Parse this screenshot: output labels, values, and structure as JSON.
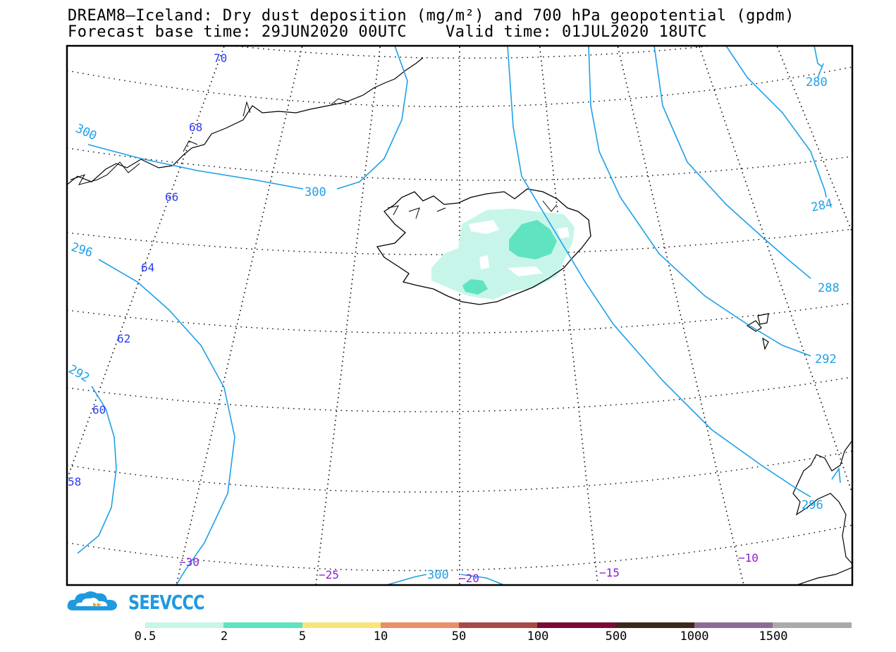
{
  "title_line1": "DREAM8—Iceland: Dry dust deposition (mg/m²) and 700 hPa geopotential (gpdm)",
  "title_line2": "Forecast base time: 29JUN2020 00UTC    Valid time: 01JUL2020 18UTC",
  "logo": {
    "name": "SEEVCCC",
    "colors": {
      "cloud": "#1e9ae0",
      "arrow": "#f0a020"
    }
  },
  "latitude_labels": [
    "70",
    "68",
    "66",
    "64",
    "62",
    "60",
    "58"
  ],
  "longitude_labels": [
    "−30",
    "−25",
    "−20",
    "−15",
    "−10"
  ],
  "contour_labels": [
    "300",
    "300",
    "296",
    "292",
    "280",
    "284",
    "288",
    "292",
    "296",
    "300"
  ],
  "colorbar": {
    "ticks": [
      "0.5",
      "2",
      "5",
      "10",
      "50",
      "100",
      "500",
      "1000",
      "1500"
    ],
    "colors": [
      "#c8f5ea",
      "#5fe3c0",
      "#f8e57a",
      "#ec8e67",
      "#a84a45",
      "#7a0a35",
      "#3a2a1a",
      "#8e6a98",
      "#aaaaaa"
    ]
  },
  "colors": {
    "contour": "#1ea0e8",
    "lat_label": "#2b3df0",
    "lon_label": "#8a1ed6",
    "grid": "#000000"
  }
}
